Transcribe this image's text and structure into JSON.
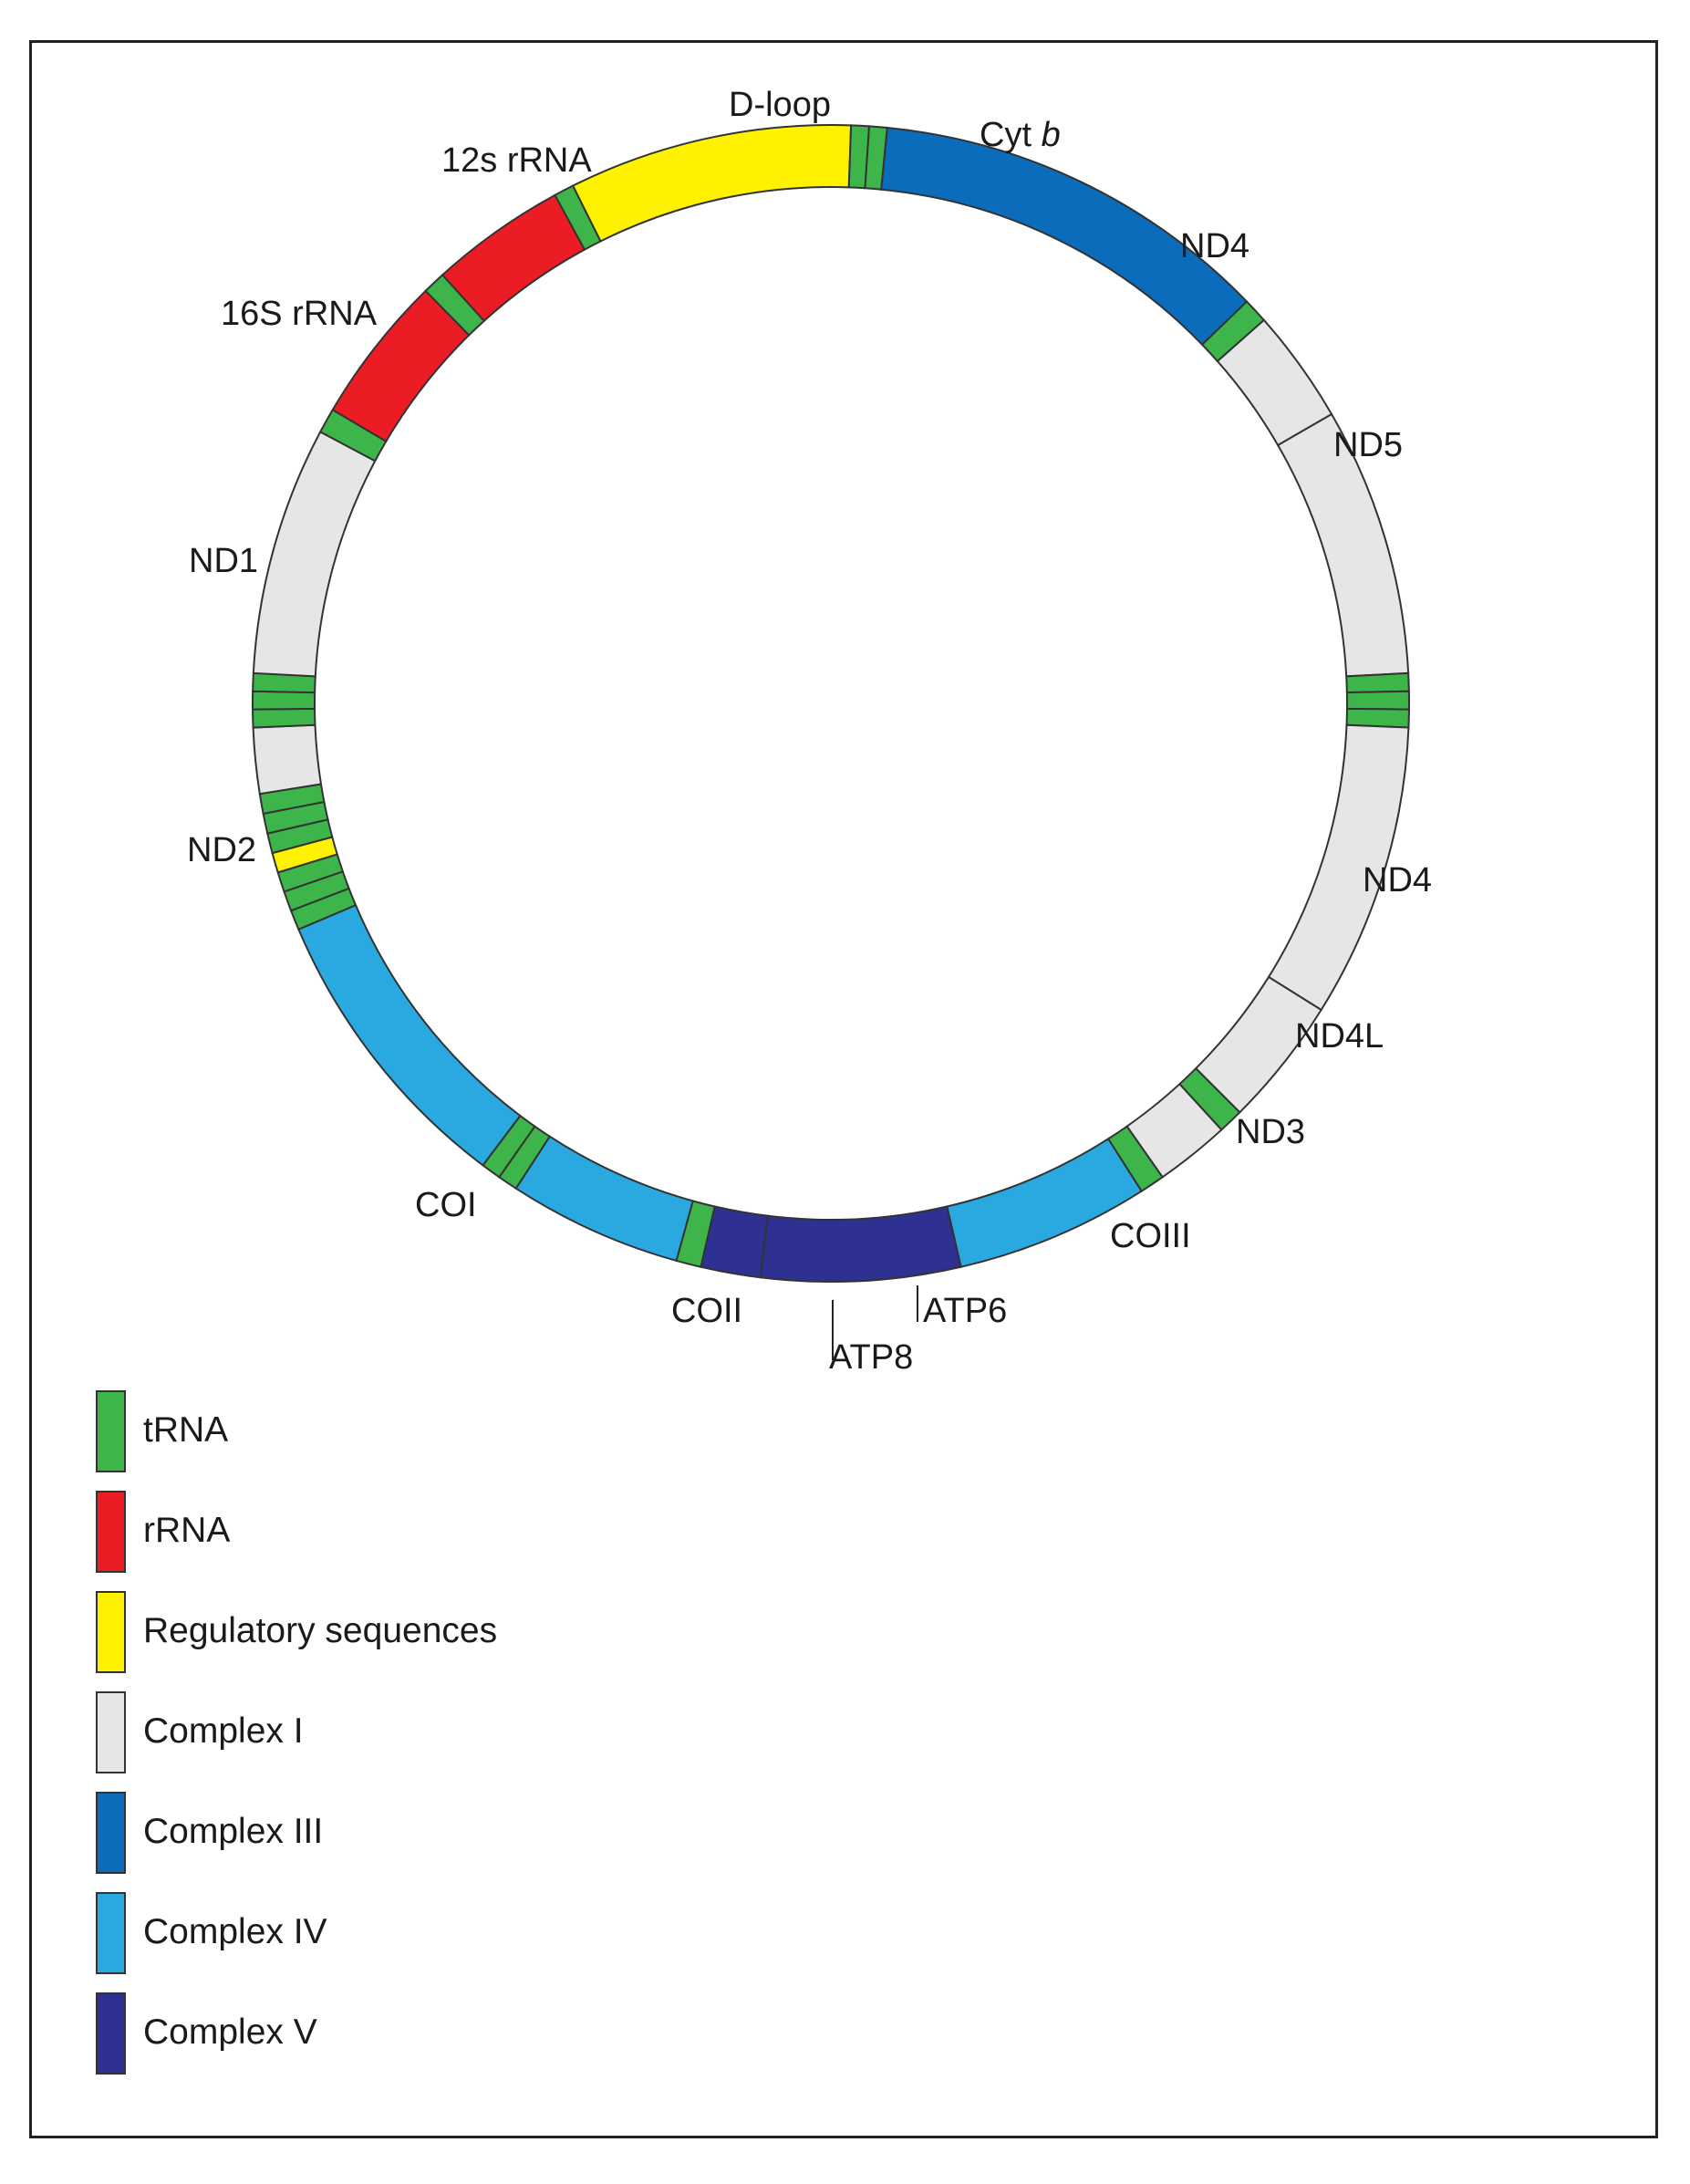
{
  "colors": {
    "tRNA": "#3db54a",
    "rRNA": "#ec1c24",
    "regulatory": "#fff200",
    "complexI": "#e6e6e6",
    "complexIII": "#0a6cba",
    "complexIV": "#2aa9e0",
    "complexV": "#2e3192"
  },
  "segments": [
    {
      "cat": "regulatory",
      "from": -26.5,
      "to": 2
    },
    {
      "cat": "tRNA",
      "from": 2,
      "to": 3.8
    },
    {
      "cat": "tRNA",
      "from": 3.8,
      "to": 5.6
    },
    {
      "cat": "complexIII",
      "from": 5.6,
      "to": 46
    },
    {
      "cat": "tRNA",
      "from": 46,
      "to": 48.5
    },
    {
      "cat": "complexI",
      "from": 48.5,
      "to": 60
    },
    {
      "cat": "complexI",
      "from": 60,
      "to": 87
    },
    {
      "cat": "tRNA",
      "from": 87,
      "to": 88.8
    },
    {
      "cat": "tRNA",
      "from": 88.8,
      "to": 90.6
    },
    {
      "cat": "tRNA",
      "from": 90.6,
      "to": 92.4
    },
    {
      "cat": "complexI",
      "from": 92.4,
      "to": 122
    },
    {
      "cat": "complexI",
      "from": 122,
      "to": 135
    },
    {
      "cat": "tRNA",
      "from": 135,
      "to": 137.5
    },
    {
      "cat": "complexI",
      "from": 137.5,
      "to": 145
    },
    {
      "cat": "tRNA",
      "from": 145,
      "to": 147.5
    },
    {
      "cat": "complexIV",
      "from": 147.5,
      "to": 167
    },
    {
      "cat": "complexV",
      "from": 167,
      "to": 187
    },
    {
      "cat": "complexV",
      "from": 187,
      "to": 193
    },
    {
      "cat": "tRNA",
      "from": 193,
      "to": 195.5
    },
    {
      "cat": "complexIV",
      "from": 195.5,
      "to": 213
    },
    {
      "cat": "tRNA",
      "from": 213,
      "to": 215
    },
    {
      "cat": "tRNA",
      "from": 215,
      "to": 217
    },
    {
      "cat": "complexIV",
      "from": 217,
      "to": 247
    },
    {
      "cat": "tRNA",
      "from": 247,
      "to": 249
    },
    {
      "cat": "tRNA",
      "from": 249,
      "to": 251
    },
    {
      "cat": "tRNA",
      "from": 251,
      "to": 253
    },
    {
      "cat": "regulatory",
      "from": 253,
      "to": 255
    },
    {
      "cat": "tRNA",
      "from": 255,
      "to": 257
    },
    {
      "cat": "tRNA",
      "from": 257,
      "to": 259
    },
    {
      "cat": "tRNA",
      "from": 259,
      "to": 261
    },
    {
      "cat": "complexI",
      "from": 261,
      "to": 267.6
    },
    {
      "cat": "tRNA",
      "from": 267.6,
      "to": 269.4
    },
    {
      "cat": "tRNA",
      "from": 269.4,
      "to": 271.2
    },
    {
      "cat": "tRNA",
      "from": 271.2,
      "to": 273
    },
    {
      "cat": "complexI",
      "from": 273,
      "to": 298
    },
    {
      "cat": "tRNA",
      "from": 298,
      "to": 300.5
    },
    {
      "cat": "rRNA",
      "from": 300.5,
      "to": 315.5
    },
    {
      "cat": "tRNA",
      "from": 315.5,
      "to": 317.8
    },
    {
      "cat": "rRNA",
      "from": 317.8,
      "to": 331.5
    },
    {
      "cat": "tRNA",
      "from": 331.5,
      "to": 333.5
    }
  ],
  "labels": {
    "dloop": "D-loop",
    "cytb_prefix": "Cyt ",
    "cytb_italic": "b",
    "nd4_top": "ND4",
    "nd5": "ND5",
    "nd4_right": "ND4",
    "nd4l": "ND4L",
    "nd3": "ND3",
    "coiii": "COIII",
    "atp6": "ATP6",
    "atp8": "ATP8",
    "coii": "COII",
    "coi": "COI",
    "nd2": "ND2",
    "nd1": "ND1",
    "rrna16s": "16S rRNA",
    "rrna12s": "12s rRNA"
  },
  "legend": [
    {
      "cat": "tRNA",
      "label": "tRNA"
    },
    {
      "cat": "rRNA",
      "label": "rRNA"
    },
    {
      "cat": "regulatory",
      "label": "Regulatory sequences"
    },
    {
      "cat": "complexI",
      "label": "Complex I"
    },
    {
      "cat": "complexIII",
      "label": "Complex III"
    },
    {
      "cat": "complexIV",
      "label": "Complex IV"
    },
    {
      "cat": "complexV",
      "label": "Complex V"
    }
  ]
}
